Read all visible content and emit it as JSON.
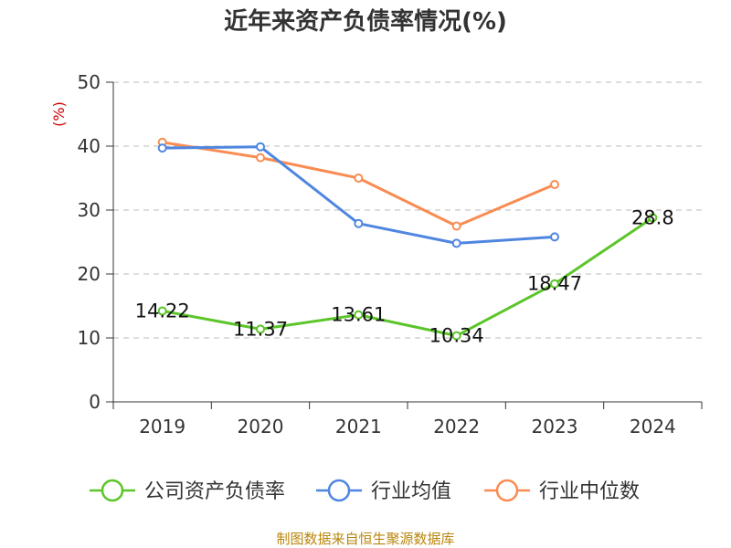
{
  "chart_data": {
    "type": "line",
    "title": "近年来资产负债率情况(%)",
    "ylabel": "(%)",
    "categories": [
      "2019",
      "2020",
      "2021",
      "2022",
      "2023",
      "2024"
    ],
    "ylim": [
      0,
      50
    ],
    "yticks": [
      "0",
      "10",
      "20",
      "30",
      "40",
      "50"
    ],
    "grid": true,
    "legend_position": "bottom",
    "series": [
      {
        "name": "公司资产负债率",
        "color": "#5cc52a",
        "values": [
          14.22,
          11.37,
          13.61,
          10.34,
          18.47,
          28.8
        ],
        "labels": [
          "14.22",
          "11.37",
          "13.61",
          "10.34",
          "18.47",
          "28.8"
        ]
      },
      {
        "name": "行业均值",
        "color": "#4f86e0",
        "values": [
          39.7,
          39.9,
          27.9,
          24.8,
          25.8,
          null
        ]
      },
      {
        "name": "行业中位数",
        "color": "#f98c52",
        "values": [
          40.6,
          38.2,
          35.0,
          27.5,
          34.0,
          null
        ]
      }
    ]
  },
  "source": "制图数据来自恒生聚源数据库"
}
